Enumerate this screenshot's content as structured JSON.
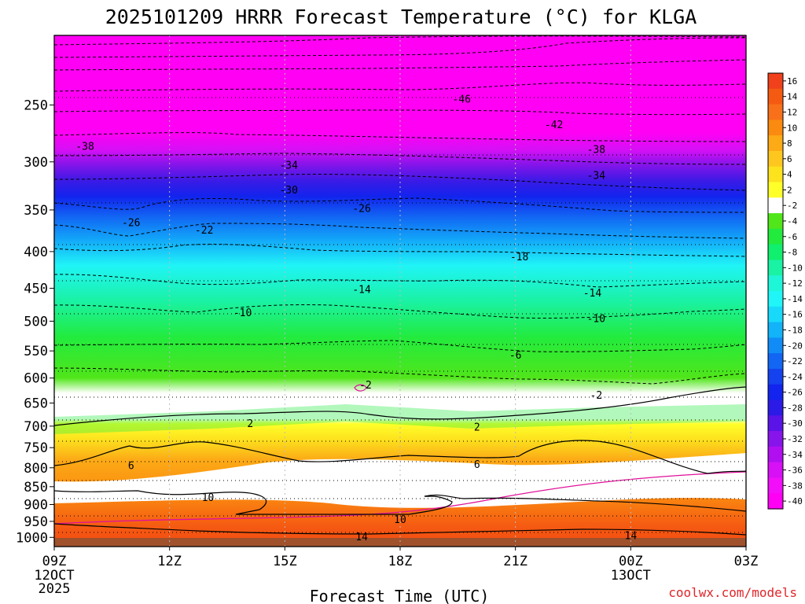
{
  "chart_data": {
    "type": "heatmap",
    "title": "2025101209 HRRR Forecast Temperature (°C) for KLGA",
    "xlabel": "Forecast Time (UTC)",
    "ylabel": "",
    "x_ticks": [
      "09Z",
      "12Z",
      "15Z",
      "18Z",
      "21Z",
      "00Z",
      "03Z"
    ],
    "x_tick_hours": [
      0,
      3,
      6,
      9,
      12,
      15,
      18
    ],
    "x_date_labels": [
      {
        "hour": 0,
        "lines": [
          "12OCT",
          "2025"
        ]
      },
      {
        "hour": 15,
        "lines": [
          "13OCT"
        ]
      }
    ],
    "y_ticks": [
      250,
      300,
      350,
      400,
      450,
      500,
      550,
      600,
      650,
      700,
      750,
      800,
      850,
      900,
      950,
      1000
    ],
    "y_range_hpa": [
      200,
      1030
    ],
    "colorbar_ticks": [
      "16",
      "14",
      "12",
      "10",
      "8",
      "6",
      "4",
      "2",
      "-2",
      "-4",
      "-6",
      "-8",
      "-10",
      "-12",
      "-14",
      "-16",
      "-18",
      "-20",
      "-22",
      "-24",
      "-26",
      "-28",
      "-30",
      "-32",
      "-34",
      "-36",
      "-38",
      "-40"
    ],
    "colorbar_colors": [
      "#f0411c",
      "#f55a12",
      "#f8711a",
      "#fa8a10",
      "#fcaa16",
      "#fdc720",
      "#fde21e",
      "#ffff2a",
      "#ffffff",
      "#50e61a",
      "#22eb3e",
      "#10ef6e",
      "#1af2a4",
      "#1ff6d8",
      "#20f6f7",
      "#19d9fb",
      "#12b3f9",
      "#118cf7",
      "#1266f3",
      "#1442ee",
      "#1224ed",
      "#2c1ae6",
      "#5a14e8",
      "#8714ea",
      "#b10ff0",
      "#d710f5",
      "#f20ef8",
      "#ff00f4"
    ],
    "contour_labels": [
      {
        "text": "-46",
        "hour": 10.6,
        "p": 245
      },
      {
        "text": "-42",
        "hour": 13.0,
        "p": 266
      },
      {
        "text": "-38",
        "hour": 0.8,
        "p": 285
      },
      {
        "text": "-38",
        "hour": 14.1,
        "p": 288
      },
      {
        "text": "-34",
        "hour": 6.1,
        "p": 303
      },
      {
        "text": "-34",
        "hour": 14.1,
        "p": 313
      },
      {
        "text": "-30",
        "hour": 6.1,
        "p": 328
      },
      {
        "text": "-26",
        "hour": 8.0,
        "p": 348
      },
      {
        "text": "-26",
        "hour": 2.0,
        "p": 364
      },
      {
        "text": "-22",
        "hour": 3.9,
        "p": 373
      },
      {
        "text": "-18",
        "hour": 12.1,
        "p": 406
      },
      {
        "text": "-14",
        "hour": 8.0,
        "p": 451
      },
      {
        "text": "-14",
        "hour": 14.0,
        "p": 456
      },
      {
        "text": "-10",
        "hour": 4.9,
        "p": 486
      },
      {
        "text": "-10",
        "hour": 14.1,
        "p": 495
      },
      {
        "text": "-6",
        "hour": 12.0,
        "p": 557
      },
      {
        "text": "-2",
        "hour": 8.1,
        "p": 613
      },
      {
        "text": "-2",
        "hour": 14.1,
        "p": 633
      },
      {
        "text": "2",
        "hour": 5.1,
        "p": 693
      },
      {
        "text": "2",
        "hour": 11.0,
        "p": 701
      },
      {
        "text": "6",
        "hour": 2.0,
        "p": 793
      },
      {
        "text": "6",
        "hour": 11.0,
        "p": 790
      },
      {
        "text": "10",
        "hour": 4.0,
        "p": 879
      },
      {
        "text": "10",
        "hour": 9.0,
        "p": 943
      },
      {
        "text": "14",
        "hour": 8.0,
        "p": 997
      },
      {
        "text": "14",
        "hour": 15.0,
        "p": 993
      }
    ]
  },
  "watermark": "coolwx.com/models"
}
